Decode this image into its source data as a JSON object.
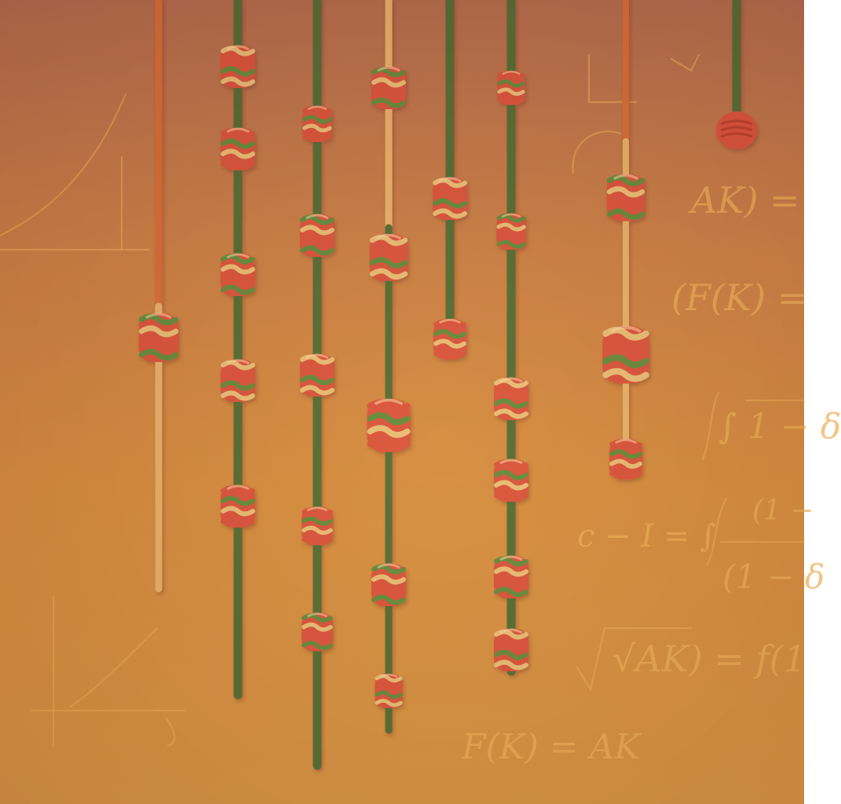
{
  "scene": {
    "description_colors": {
      "background_top": "#b06a4e",
      "background_bottom": "#d49443",
      "cord_green": "#4b6b32",
      "cord_orange": "#d86a34",
      "cord_cream": "#e8b26a",
      "knot_red": "#d9503a",
      "knot_green": "#5d8a3a",
      "knot_cream": "#e9bf79",
      "chalk": "#eeb058"
    }
  },
  "equations": {
    "eq1": "AK) =",
    "eq2": "(F(K) =",
    "eq3": "∫ 1 − δ",
    "eq4": "c − I = ∫",
    "eq4_frac_top": "(1 −",
    "eq4_frac_bottom": "(1 − δ",
    "eq5": "√AK) = f(1",
    "eq6": "F(K) = AK"
  }
}
